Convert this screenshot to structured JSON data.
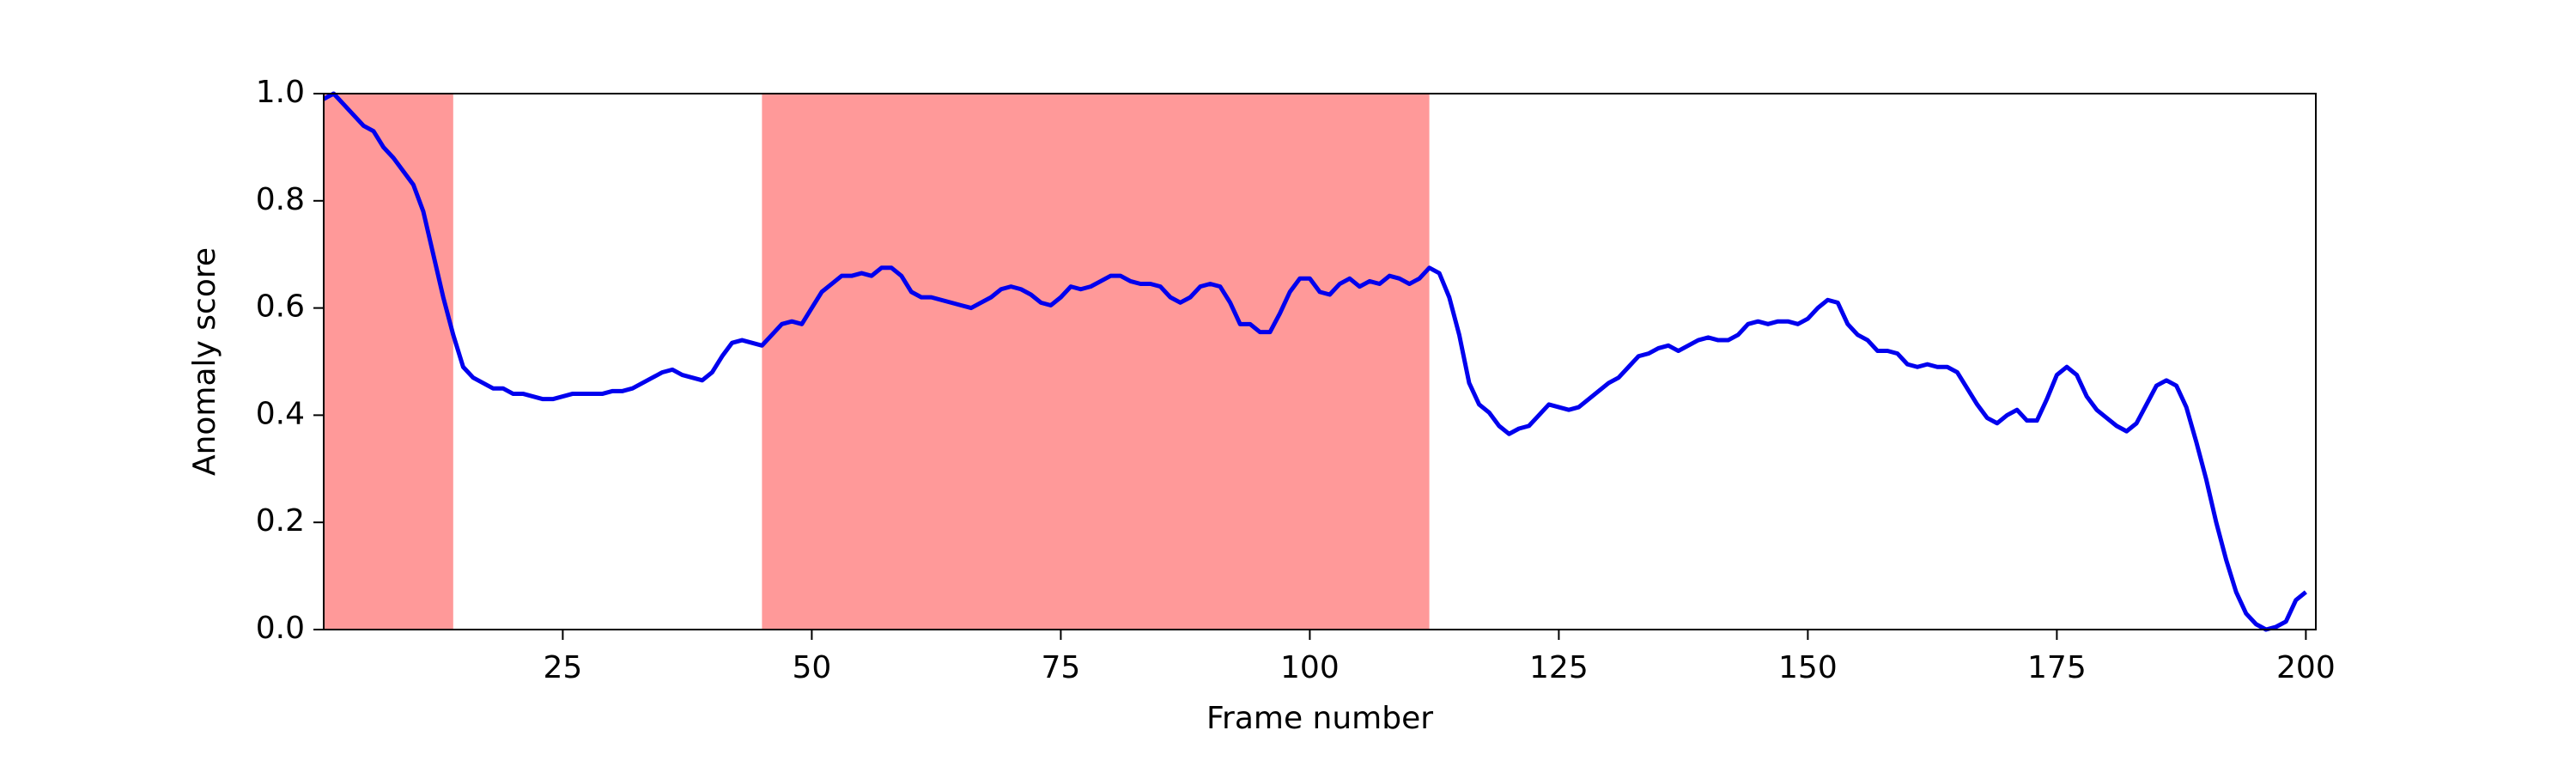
{
  "chart_data": {
    "type": "line",
    "xlabel": "Frame number",
    "ylabel": "Anomaly score",
    "xlim": [
      1,
      201
    ],
    "ylim": [
      0,
      1
    ],
    "xticks": [
      25,
      50,
      75,
      100,
      125,
      150,
      175,
      200
    ],
    "yticks": [
      {
        "value": 0,
        "label": "0.0"
      },
      {
        "value": 0.2,
        "label": "0.2"
      },
      {
        "value": 0.4,
        "label": "0.4"
      },
      {
        "value": 0.6,
        "label": "0.6"
      },
      {
        "value": 0.8,
        "label": "0.8"
      },
      {
        "value": 1,
        "label": "1.0"
      }
    ],
    "highlight_ranges": [
      [
        1,
        14
      ],
      [
        45,
        112
      ]
    ],
    "highlight_color": "#ff9999",
    "x": [
      1,
      2,
      3,
      4,
      5,
      6,
      7,
      8,
      9,
      10,
      11,
      12,
      13,
      14,
      15,
      16,
      17,
      18,
      19,
      20,
      21,
      22,
      23,
      24,
      25,
      26,
      27,
      28,
      29,
      30,
      31,
      32,
      33,
      34,
      35,
      36,
      37,
      38,
      39,
      40,
      41,
      42,
      43,
      44,
      45,
      46,
      47,
      48,
      49,
      50,
      51,
      52,
      53,
      54,
      55,
      56,
      57,
      58,
      59,
      60,
      61,
      62,
      63,
      64,
      65,
      66,
      67,
      68,
      69,
      70,
      71,
      72,
      73,
      74,
      75,
      76,
      77,
      78,
      79,
      80,
      81,
      82,
      83,
      84,
      85,
      86,
      87,
      88,
      89,
      90,
      91,
      92,
      93,
      94,
      95,
      96,
      97,
      98,
      99,
      100,
      101,
      102,
      103,
      104,
      105,
      106,
      107,
      108,
      109,
      110,
      111,
      112,
      113,
      114,
      115,
      116,
      117,
      118,
      119,
      120,
      121,
      122,
      123,
      124,
      125,
      126,
      127,
      128,
      129,
      130,
      131,
      132,
      133,
      134,
      135,
      136,
      137,
      138,
      139,
      140,
      141,
      142,
      143,
      144,
      145,
      146,
      147,
      148,
      149,
      150,
      151,
      152,
      153,
      154,
      155,
      156,
      157,
      158,
      159,
      160,
      161,
      162,
      163,
      164,
      165,
      166,
      167,
      168,
      169,
      170,
      171,
      172,
      173,
      174,
      175,
      176,
      177,
      178,
      179,
      180,
      181,
      182,
      183,
      184,
      185,
      186,
      187,
      188,
      189,
      190,
      191,
      192,
      193,
      194,
      195,
      196,
      197,
      198,
      199,
      200
    ],
    "series": [
      {
        "color": "#0000ee",
        "values": [
          0.99,
          1.0,
          0.98,
          0.96,
          0.94,
          0.93,
          0.9,
          0.88,
          0.855,
          0.83,
          0.78,
          0.7,
          0.62,
          0.55,
          0.49,
          0.47,
          0.46,
          0.45,
          0.45,
          0.44,
          0.44,
          0.435,
          0.43,
          0.43,
          0.435,
          0.44,
          0.44,
          0.44,
          0.44,
          0.445,
          0.445,
          0.45,
          0.46,
          0.47,
          0.48,
          0.485,
          0.475,
          0.47,
          0.465,
          0.48,
          0.51,
          0.535,
          0.54,
          0.535,
          0.53,
          0.55,
          0.57,
          0.575,
          0.57,
          0.6,
          0.63,
          0.645,
          0.66,
          0.66,
          0.665,
          0.66,
          0.675,
          0.675,
          0.66,
          0.63,
          0.62,
          0.62,
          0.615,
          0.61,
          0.605,
          0.6,
          0.61,
          0.62,
          0.635,
          0.64,
          0.635,
          0.625,
          0.61,
          0.605,
          0.62,
          0.64,
          0.635,
          0.64,
          0.65,
          0.66,
          0.66,
          0.65,
          0.645,
          0.645,
          0.64,
          0.62,
          0.61,
          0.62,
          0.64,
          0.645,
          0.64,
          0.61,
          0.57,
          0.57,
          0.555,
          0.555,
          0.59,
          0.63,
          0.655,
          0.655,
          0.63,
          0.625,
          0.645,
          0.655,
          0.64,
          0.65,
          0.645,
          0.66,
          0.655,
          0.645,
          0.655,
          0.675,
          0.665,
          0.62,
          0.55,
          0.46,
          0.42,
          0.405,
          0.38,
          0.365,
          0.375,
          0.38,
          0.4,
          0.42,
          0.415,
          0.41,
          0.415,
          0.43,
          0.445,
          0.46,
          0.47,
          0.49,
          0.51,
          0.515,
          0.525,
          0.53,
          0.52,
          0.53,
          0.54,
          0.545,
          0.54,
          0.54,
          0.55,
          0.57,
          0.575,
          0.57,
          0.575,
          0.575,
          0.57,
          0.58,
          0.6,
          0.615,
          0.61,
          0.57,
          0.55,
          0.54,
          0.52,
          0.52,
          0.515,
          0.495,
          0.49,
          0.495,
          0.49,
          0.49,
          0.48,
          0.45,
          0.42,
          0.395,
          0.385,
          0.4,
          0.41,
          0.39,
          0.39,
          0.43,
          0.475,
          0.49,
          0.475,
          0.435,
          0.41,
          0.395,
          0.38,
          0.37,
          0.385,
          0.42,
          0.455,
          0.465,
          0.455,
          0.415,
          0.35,
          0.28,
          0.2,
          0.13,
          0.07,
          0.03,
          0.01,
          0.0,
          0.005,
          0.015,
          0.055,
          0.07
        ]
      }
    ]
  }
}
